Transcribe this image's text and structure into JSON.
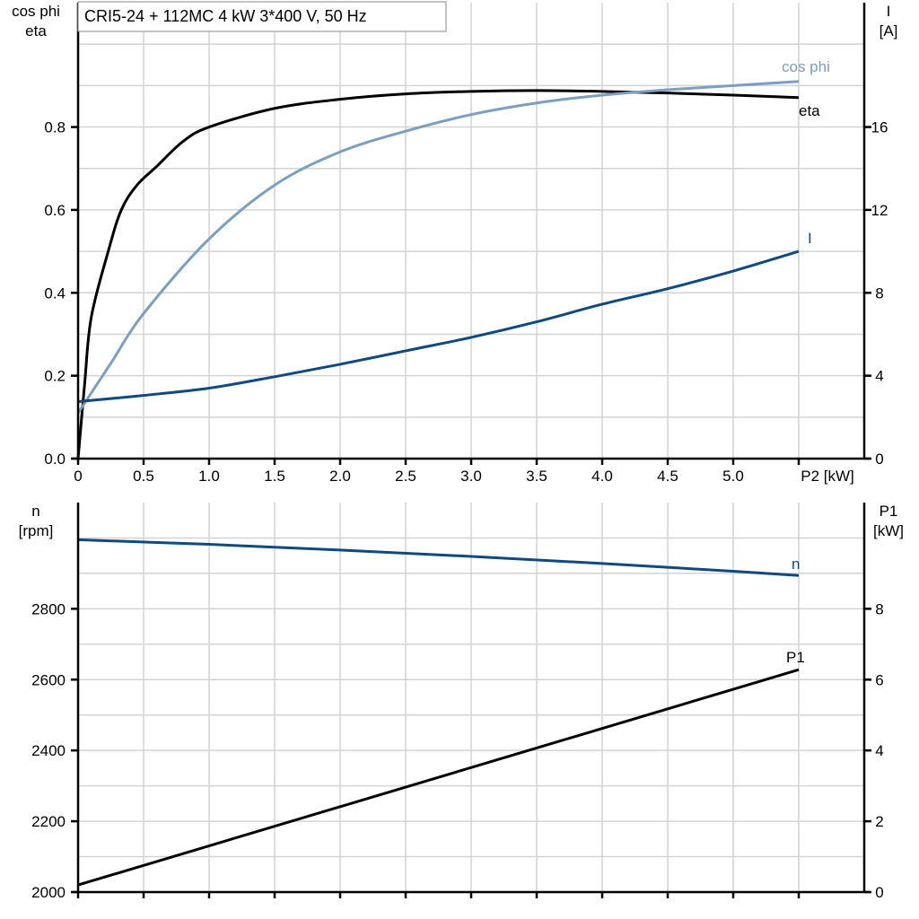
{
  "title": "CRI5-24 + 112MC   4 kW   3*400 V, 50 Hz",
  "colors": {
    "eta": "#000000",
    "cos_phi": "#7a9fc0",
    "I": "#0e4a80",
    "n": "#0e4a80",
    "P1": "#000000",
    "grid": "#d3d3d3"
  },
  "chart_data": [
    {
      "type": "line",
      "xlabel": "P2 [kW]",
      "x_ticks": [
        "0",
        "0.5",
        "1.0",
        "1.5",
        "2.0",
        "2.5",
        "3.0",
        "3.5",
        "4.0",
        "4.5",
        "5.0",
        "P2 [kW]"
      ],
      "xlim": [
        0,
        5.5
      ],
      "ylabel_left": [
        "cos phi",
        "eta"
      ],
      "ylim_left": [
        0,
        1.1
      ],
      "y_ticks_left": [
        "0.0",
        "0.2",
        "0.4",
        "0.6",
        "0.8"
      ],
      "ylabel_right": [
        "I",
        "[A]"
      ],
      "ylim_right": [
        0,
        22
      ],
      "y_ticks_right": [
        "0",
        "4",
        "8",
        "12",
        "16"
      ],
      "grid": true,
      "series": [
        {
          "name": "eta",
          "axis": "left",
          "x": [
            0,
            0.05,
            0.1,
            0.23,
            0.33,
            0.45,
            0.6,
            0.8,
            1.0,
            1.5,
            2.0,
            2.5,
            3.0,
            3.5,
            4.0,
            4.5,
            5.0,
            5.5
          ],
          "y": [
            0,
            0.18,
            0.34,
            0.5,
            0.6,
            0.66,
            0.705,
            0.765,
            0.8,
            0.845,
            0.867,
            0.88,
            0.886,
            0.888,
            0.886,
            0.882,
            0.877,
            0.871
          ]
        },
        {
          "name": "cos phi",
          "axis": "left",
          "x": [
            0,
            0.25,
            0.5,
            1.0,
            1.5,
            2.0,
            2.5,
            3.0,
            3.5,
            4.0,
            4.5,
            5.0,
            5.5
          ],
          "y": [
            0.11,
            0.23,
            0.35,
            0.53,
            0.66,
            0.74,
            0.79,
            0.83,
            0.858,
            0.877,
            0.89,
            0.9,
            0.91
          ]
        },
        {
          "name": "I",
          "axis": "right",
          "x": [
            0,
            0.5,
            1.0,
            1.5,
            2.0,
            2.5,
            3.0,
            3.5,
            4.0,
            4.5,
            5.0,
            5.5
          ],
          "y": [
            2.75,
            3.05,
            3.4,
            3.95,
            4.55,
            5.2,
            5.85,
            6.6,
            7.45,
            8.2,
            9.05,
            10.0
          ]
        }
      ]
    },
    {
      "type": "line",
      "xlim": [
        0,
        5.5
      ],
      "ylabel_left": [
        "n",
        "[rpm]"
      ],
      "ylim_left": [
        2000,
        3100
      ],
      "y_ticks_left": [
        "2000",
        "2200",
        "2400",
        "2600",
        "2800"
      ],
      "ylabel_right": [
        "P1",
        "[kW]"
      ],
      "ylim_right": [
        0,
        11
      ],
      "y_ticks_right": [
        "0",
        "2",
        "4",
        "6",
        "8"
      ],
      "grid": true,
      "series": [
        {
          "name": "n",
          "axis": "left",
          "x": [
            0,
            1.0,
            2.0,
            3.0,
            4.0,
            5.0,
            5.5
          ],
          "y": [
            2995,
            2982,
            2966,
            2948,
            2928,
            2906,
            2894
          ]
        },
        {
          "name": "P1",
          "axis": "right",
          "x": [
            0,
            5.5
          ],
          "y": [
            0.2,
            6.28
          ]
        }
      ]
    }
  ]
}
